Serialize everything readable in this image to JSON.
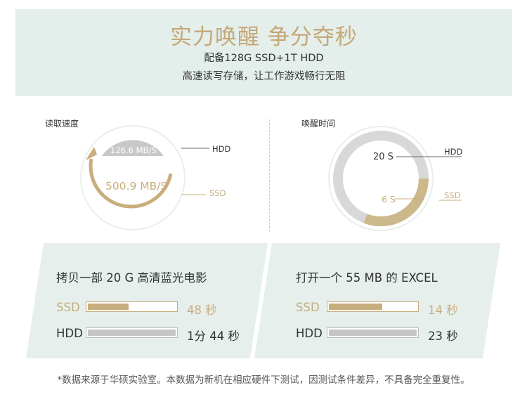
{
  "banner": {
    "headline": "实力唤醒 争分夺秒",
    "line1": "配备128G SSD+1T HDD",
    "line2": "高速读写存储，让工作游戏畅行无阻"
  },
  "read_speed": {
    "label": "读取速度",
    "hdd_value": "126.6 MB/S",
    "ssd_value": "500.9 MB/S",
    "hdd_tag": "HDD",
    "ssd_tag": "SSD"
  },
  "wake_time": {
    "label": "唤醒时间",
    "hdd_value": "20 S",
    "ssd_value": "6 S",
    "hdd_tag": "HDD",
    "ssd_tag": "SSD",
    "ssd_fraction": 0.3
  },
  "movie_card": {
    "title": "拷贝一部 20 G 高清蓝光电影",
    "ssd_label": "SSD",
    "hdd_label": "HDD",
    "ssd_time": "48 秒",
    "hdd_time": "1分 44 秒",
    "ssd_fraction": 0.46,
    "hdd_fraction": 1.0
  },
  "excel_card": {
    "title": "打开一个 55 MB 的 EXCEL",
    "ssd_label": "SSD",
    "hdd_label": "HDD",
    "ssd_time": "14 秒",
    "hdd_time": "23 秒",
    "ssd_fraction": 0.61,
    "hdd_fraction": 1.0
  },
  "footnote": "*数据来源于华硕实验室。本数据为新机在相应硬件下测试，因测试条件差异，不具备完全重复性。",
  "colors": {
    "gold": "#c8ad7d",
    "gray": "#c5c5c5",
    "mint": "#e4eeeb"
  }
}
